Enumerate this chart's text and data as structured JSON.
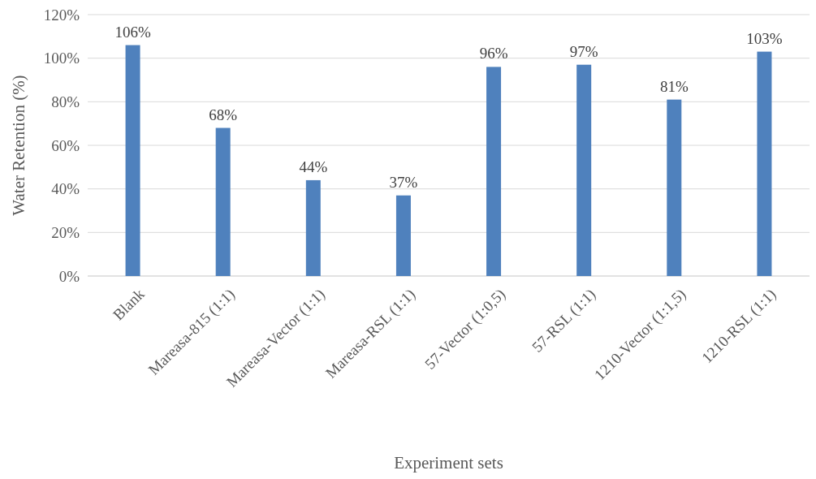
{
  "chart_data": {
    "type": "bar",
    "xlabel": "Experiment sets",
    "ylabel": "Water Retention (%)",
    "categories": [
      "Blank",
      "Mareasa-815 (1:1)",
      "Mareasa-Vector (1:1)",
      "Mareasa-RSL (1:1)",
      "57-Vector (1:0,5)",
      "57-RSL (1:1)",
      "1210-Vector (1:1,5)",
      "1210-RSL (1:1)"
    ],
    "values": [
      106,
      68,
      44,
      37,
      96,
      97,
      81,
      103
    ],
    "value_labels": [
      "106%",
      "68%",
      "44%",
      "37%",
      "96%",
      "97%",
      "81%",
      "103%"
    ],
    "color": "#4f81bd",
    "ylim": [
      0,
      120
    ],
    "yticks": [
      {
        "value": 0,
        "label": "0%"
      },
      {
        "value": 20,
        "label": "20%"
      },
      {
        "value": 40,
        "label": "40%"
      },
      {
        "value": 60,
        "label": "60%"
      },
      {
        "value": 80,
        "label": "80%"
      },
      {
        "value": 100,
        "label": "100%"
      },
      {
        "value": 120,
        "label": "120%"
      }
    ],
    "grid": "y"
  }
}
